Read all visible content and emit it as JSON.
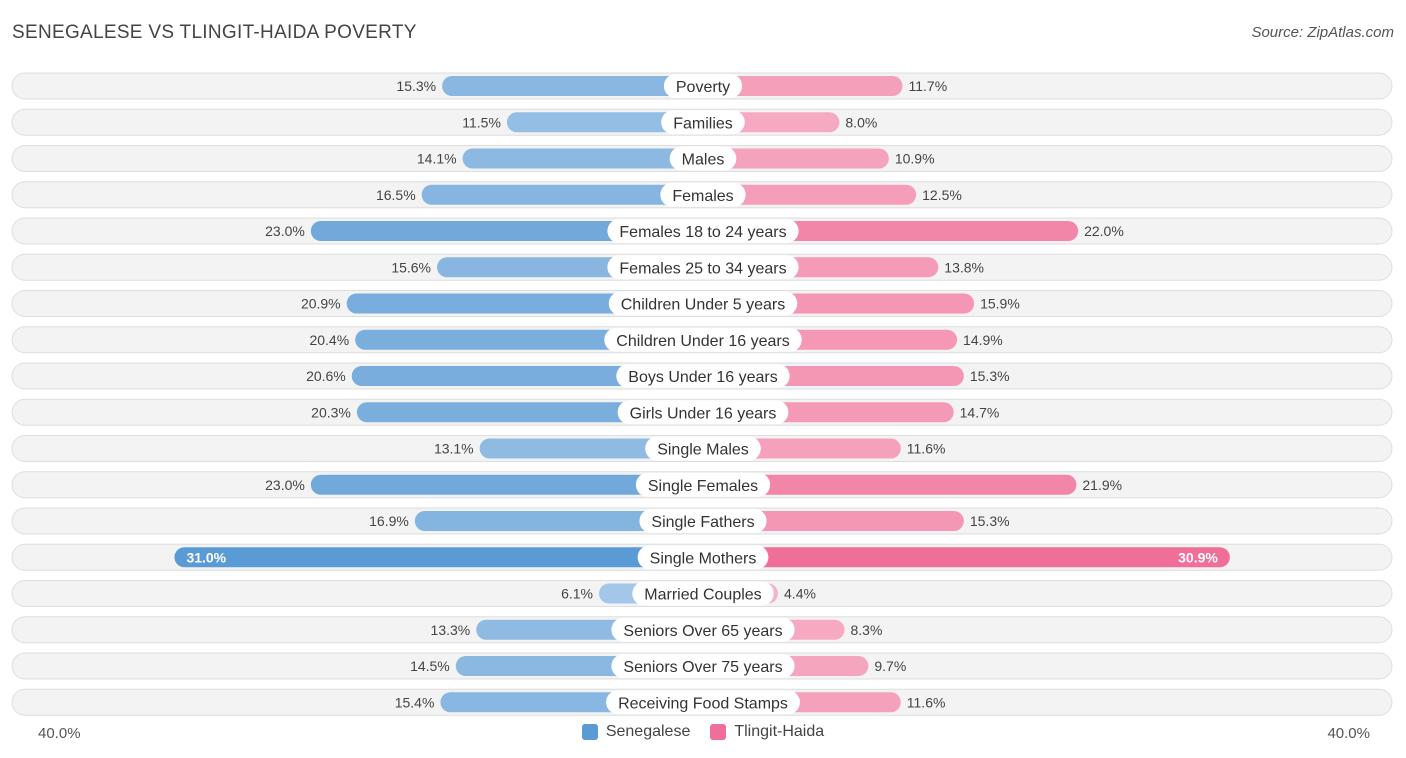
{
  "header": {
    "title": "SENEGALESE VS TLINGIT-HAIDA POVERTY",
    "source": "Source: ZipAtlas.com"
  },
  "colors": {
    "senegalese": "#5b9bd5",
    "tlingit": "#f06f98"
  },
  "axis": {
    "left_label": "40.0%",
    "right_label": "40.0%"
  },
  "legend": {
    "series_a": "Senegalese",
    "series_b": "Tlingit-Haida"
  },
  "chart_data": {
    "type": "bar",
    "orientation": "diverging-horizontal",
    "title": "SENEGALESE VS TLINGIT-HAIDA POVERTY",
    "xlim": [
      -40,
      40
    ],
    "categories": [
      "Poverty",
      "Families",
      "Males",
      "Females",
      "Females 18 to 24 years",
      "Females 25 to 34 years",
      "Children Under 5 years",
      "Children Under 16 years",
      "Boys Under 16 years",
      "Girls Under 16 years",
      "Single Males",
      "Single Females",
      "Single Fathers",
      "Single Mothers",
      "Married Couples",
      "Seniors Over 65 years",
      "Seniors Over 75 years",
      "Receiving Food Stamps"
    ],
    "series": [
      {
        "name": "Senegalese",
        "values": [
          15.3,
          11.5,
          14.1,
          16.5,
          23.0,
          15.6,
          20.9,
          20.4,
          20.6,
          20.3,
          13.1,
          23.0,
          16.9,
          31.0,
          6.1,
          13.3,
          14.5,
          15.4
        ],
        "labels": [
          "15.3%",
          "11.5%",
          "14.1%",
          "16.5%",
          "23.0%",
          "15.6%",
          "20.9%",
          "20.4%",
          "20.6%",
          "20.3%",
          "13.1%",
          "23.0%",
          "16.9%",
          "31.0%",
          "6.1%",
          "13.3%",
          "14.5%",
          "15.4%"
        ]
      },
      {
        "name": "Tlingit-Haida",
        "values": [
          11.7,
          8.0,
          10.9,
          12.5,
          22.0,
          13.8,
          15.9,
          14.9,
          15.3,
          14.7,
          11.6,
          21.9,
          15.3,
          30.9,
          4.4,
          8.3,
          9.7,
          11.6
        ],
        "labels": [
          "11.7%",
          "8.0%",
          "10.9%",
          "12.5%",
          "22.0%",
          "13.8%",
          "15.9%",
          "14.9%",
          "15.3%",
          "14.7%",
          "11.6%",
          "21.9%",
          "15.3%",
          "30.9%",
          "4.4%",
          "8.3%",
          "9.7%",
          "11.6%"
        ]
      }
    ]
  }
}
